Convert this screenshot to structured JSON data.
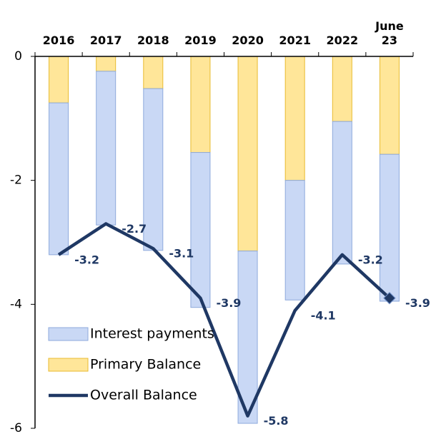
{
  "chart_data": {
    "type": "stacked-bar-line",
    "categories": [
      "2016",
      "2017",
      "2018",
      "2019",
      "2020",
      "2021",
      "2022",
      "June 23"
    ],
    "series": [
      {
        "name": "Interest payments",
        "type": "bar",
        "color": "#c9d8f5",
        "edge": "#8eaadc",
        "values": [
          -2.45,
          -2.48,
          -2.61,
          -2.5,
          -2.78,
          -1.93,
          -2.3,
          -2.37
        ]
      },
      {
        "name": "Primary Balance",
        "type": "bar",
        "color": "#ffe699",
        "edge": "#e8bb30",
        "values": [
          -0.75,
          -0.24,
          -0.52,
          -1.55,
          -3.14,
          -2.0,
          -1.05,
          -1.58
        ]
      },
      {
        "name": "Overall Balance",
        "type": "line",
        "color": "#1f3864",
        "values": [
          -3.2,
          -2.7,
          -3.1,
          -3.9,
          -5.8,
          -4.1,
          -3.2,
          -3.9
        ]
      }
    ],
    "ylim": [
      -6,
      0
    ],
    "yticks": [
      0,
      -2,
      -4,
      -6
    ],
    "legend": "lower left"
  }
}
